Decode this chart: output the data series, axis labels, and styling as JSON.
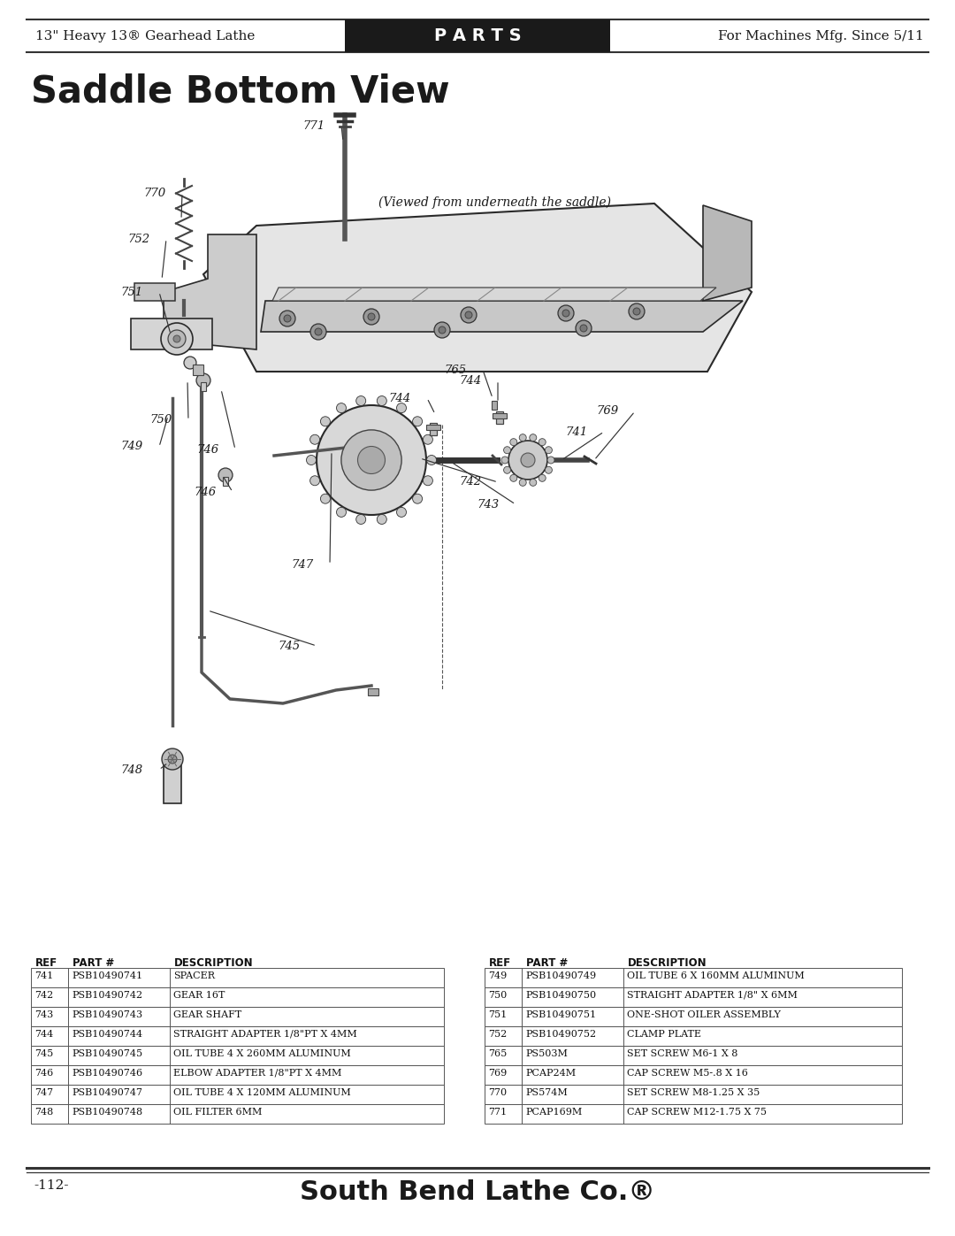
{
  "page_title": "Saddle Bottom View",
  "header_left": "13\" Heavy 13® Gearhead Lathe",
  "header_center": "P A R T S",
  "header_right": "For Machines Mfg. Since 5/11",
  "footer_left": "-112-",
  "footer_center": "South Bend Lathe Co.®",
  "diagram_note": "(Viewed from underneath the saddle)",
  "bg_color": "#ffffff",
  "header_bg": "#1a1a1a",
  "header_text_color": "#ffffff",
  "body_text_color": "#1a1a1a",
  "table_left": [
    [
      "741",
      "PSB10490741",
      "SPACER"
    ],
    [
      "742",
      "PSB10490742",
      "GEAR 16T"
    ],
    [
      "743",
      "PSB10490743",
      "GEAR SHAFT"
    ],
    [
      "744",
      "PSB10490744",
      "STRAIGHT ADAPTER 1/8\"PT X 4MM"
    ],
    [
      "745",
      "PSB10490745",
      "OIL TUBE 4 X 260MM ALUMINUM"
    ],
    [
      "746",
      "PSB10490746",
      "ELBOW ADAPTER 1/8\"PT X 4MM"
    ],
    [
      "747",
      "PSB10490747",
      "OIL TUBE 4 X 120MM ALUMINUM"
    ],
    [
      "748",
      "PSB10490748",
      "OIL FILTER 6MM"
    ]
  ],
  "table_right": [
    [
      "749",
      "PSB10490749",
      "OIL TUBE 6 X 160MM ALUMINUM"
    ],
    [
      "750",
      "PSB10490750",
      "STRAIGHT ADAPTER 1/8\" X 6MM"
    ],
    [
      "751",
      "PSB10490751",
      "ONE-SHOT OILER ASSEMBLY"
    ],
    [
      "752",
      "PSB10490752",
      "CLAMP PLATE"
    ],
    [
      "765",
      "PS503M",
      "SET SCREW M6-1 X 8"
    ],
    [
      "769",
      "PCAP24M",
      "CAP SCREW M5-.8 X 16"
    ],
    [
      "770",
      "PS574M",
      "SET SCREW M8-1.25 X 35"
    ],
    [
      "771",
      "PCAP169M",
      "CAP SCREW M12-1.75 X 75"
    ]
  ]
}
